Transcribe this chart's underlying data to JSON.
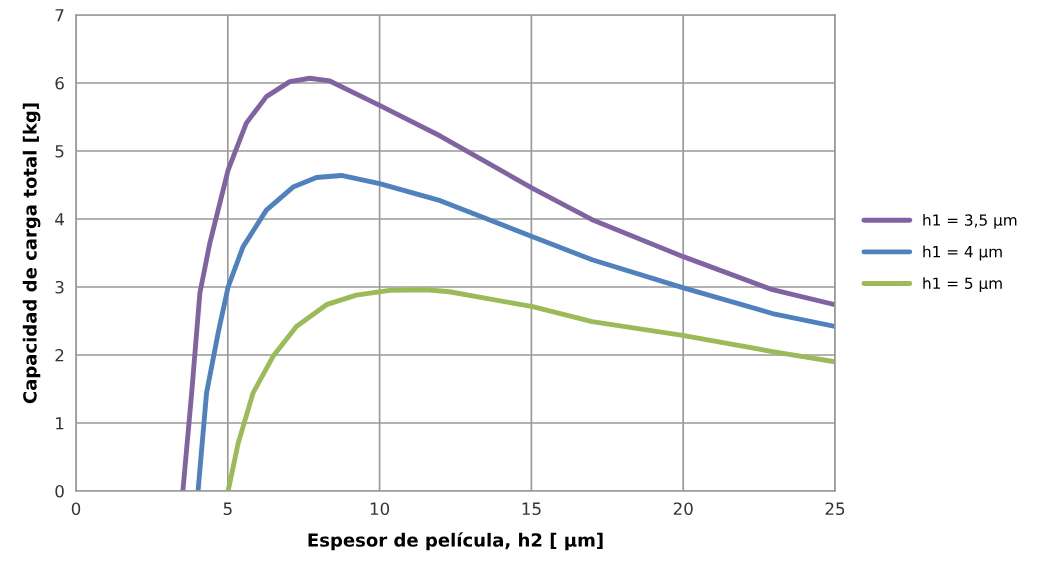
{
  "chart_data": {
    "type": "line",
    "xlabel": "Espesor de película, h2 [ μm]",
    "ylabel": "Capacidad de carga total [kg]",
    "xlim": [
      0,
      25
    ],
    "xticks": [
      0,
      5,
      10,
      15,
      20,
      25
    ],
    "ylim": [
      0,
      7
    ],
    "yticks": [
      0,
      1,
      2,
      3,
      4,
      5,
      6,
      7
    ],
    "grid": true,
    "legend": "right",
    "marker": "none",
    "line_style": "solid",
    "series": [
      {
        "name": "h1 = 3,5 μm",
        "color": "#8064a2",
        "x": [
          3.52,
          3.81,
          4.08,
          4.41,
          5.01,
          5.61,
          6.27,
          7.04,
          7.7,
          8.36,
          10.0,
          12.0,
          15.04,
          17.0,
          19.98,
          22.94,
          25
        ],
        "values": [
          0,
          1.44,
          2.91,
          3.65,
          4.72,
          5.41,
          5.8,
          6.02,
          6.07,
          6.03,
          5.67,
          5.22,
          4.45,
          3.99,
          3.45,
          2.96,
          2.74
        ]
      },
      {
        "name": "h1 = 4 μm",
        "color": "#4f81bd",
        "x": [
          4.02,
          4.3,
          4.68,
          5.01,
          5.5,
          6.27,
          7.15,
          7.92,
          8.74,
          10.0,
          12.0,
          15.04,
          17.0,
          19.98,
          22.94,
          25
        ],
        "values": [
          0,
          1.44,
          2.32,
          3.0,
          3.59,
          4.13,
          4.47,
          4.61,
          4.64,
          4.52,
          4.27,
          3.74,
          3.4,
          2.99,
          2.61,
          2.42
        ]
      },
      {
        "name": "h1 = 5 μm",
        "color": "#9bbb59",
        "x": [
          5.01,
          5.34,
          5.83,
          6.49,
          7.26,
          8.25,
          9.23,
          10.33,
          11.54,
          12.3,
          15.04,
          17.0,
          19.98,
          22.94,
          25
        ],
        "values": [
          0,
          0.7,
          1.44,
          1.98,
          2.42,
          2.74,
          2.88,
          2.95,
          2.96,
          2.93,
          2.71,
          2.49,
          2.29,
          2.05,
          1.9
        ]
      }
    ]
  }
}
